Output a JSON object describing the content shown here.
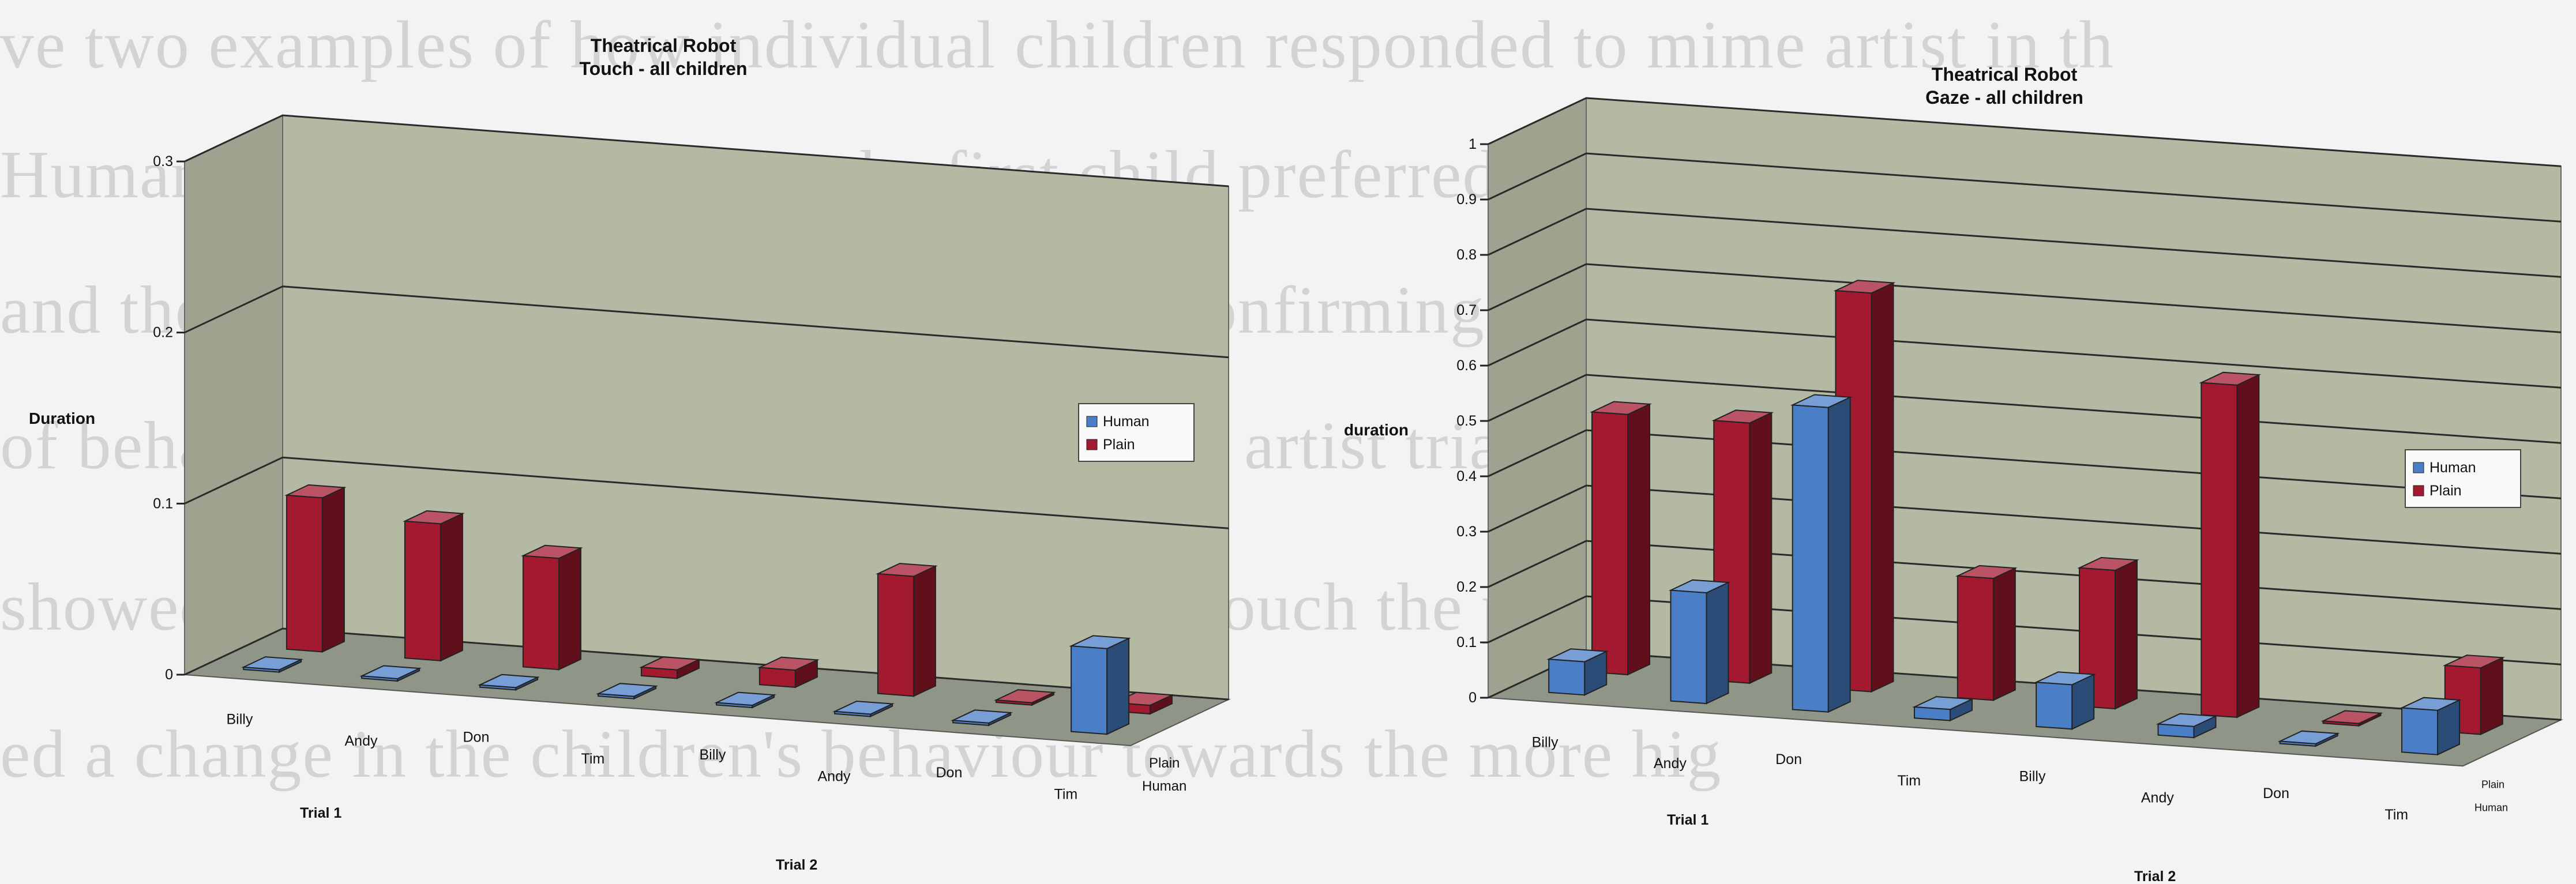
{
  "background_text": [
    "ve two examples of how individual children responded to mime artist in th",
    "Human and Plain conditions, the first child preferred the Human condition",
    "and the second child the Plain condition, confirming the conclusions drawn",
    "of behaviours across the group in the mime artist trials. The robot stu",
    "showed the children tended to look at and touch the plain robot more,",
    "ed a change in the children's behaviour towards the more hig"
  ],
  "colors": {
    "human": "#4a7fc8",
    "plain": "#a3192f",
    "wall": "#b4b9a3",
    "floor": "#8f9587",
    "gridline": "#2a2a2a"
  },
  "chart_data": [
    {
      "type": "bar",
      "title": "Theatrical Robot",
      "subtitle": "Touch - all children",
      "ylabel": "Duration",
      "ylim": [
        0,
        0.3
      ],
      "yticks": [
        "0",
        "0.1",
        "0.2",
        "0.3"
      ],
      "categories": [
        "Billy",
        "Andy",
        "Don",
        "Tim",
        "Billy",
        "Andy",
        "Don",
        "Tim"
      ],
      "groups": [
        "Trial 1",
        "Trial 2"
      ],
      "depth_labels": [
        "Plain",
        "Human"
      ],
      "grid": true,
      "legend_position": "right",
      "series": [
        {
          "name": "Human",
          "values": [
            0,
            0,
            0,
            0,
            0,
            0,
            0,
            0.05
          ]
        },
        {
          "name": "Plain",
          "values": [
            0.09,
            0.08,
            0.065,
            0.005,
            0.01,
            0.07,
            0,
            0.005
          ]
        }
      ]
    },
    {
      "type": "bar",
      "title": "Theatrical Robot",
      "subtitle": "Gaze - all children",
      "ylabel": "duration",
      "ylim": [
        0,
        1
      ],
      "yticks": [
        "0",
        "0.1",
        "0.2",
        "0.3",
        "0.4",
        "0.5",
        "0.6",
        "0.7",
        "0.8",
        "0.9",
        "1"
      ],
      "categories": [
        "Billy",
        "Andy",
        "Don",
        "Tim",
        "Billy",
        "Andy",
        "Don",
        "Tim"
      ],
      "groups": [
        "Trial 1",
        "Trial 2"
      ],
      "depth_labels": [
        "Plain",
        "Human"
      ],
      "grid": true,
      "legend_position": "right",
      "series": [
        {
          "name": "Human",
          "values": [
            0.06,
            0.2,
            0.55,
            0.02,
            0.08,
            0.02,
            0,
            0.08
          ]
        },
        {
          "name": "Plain",
          "values": [
            0.47,
            0.47,
            0.72,
            0.22,
            0.25,
            0.6,
            0,
            0.12
          ]
        }
      ]
    }
  ]
}
